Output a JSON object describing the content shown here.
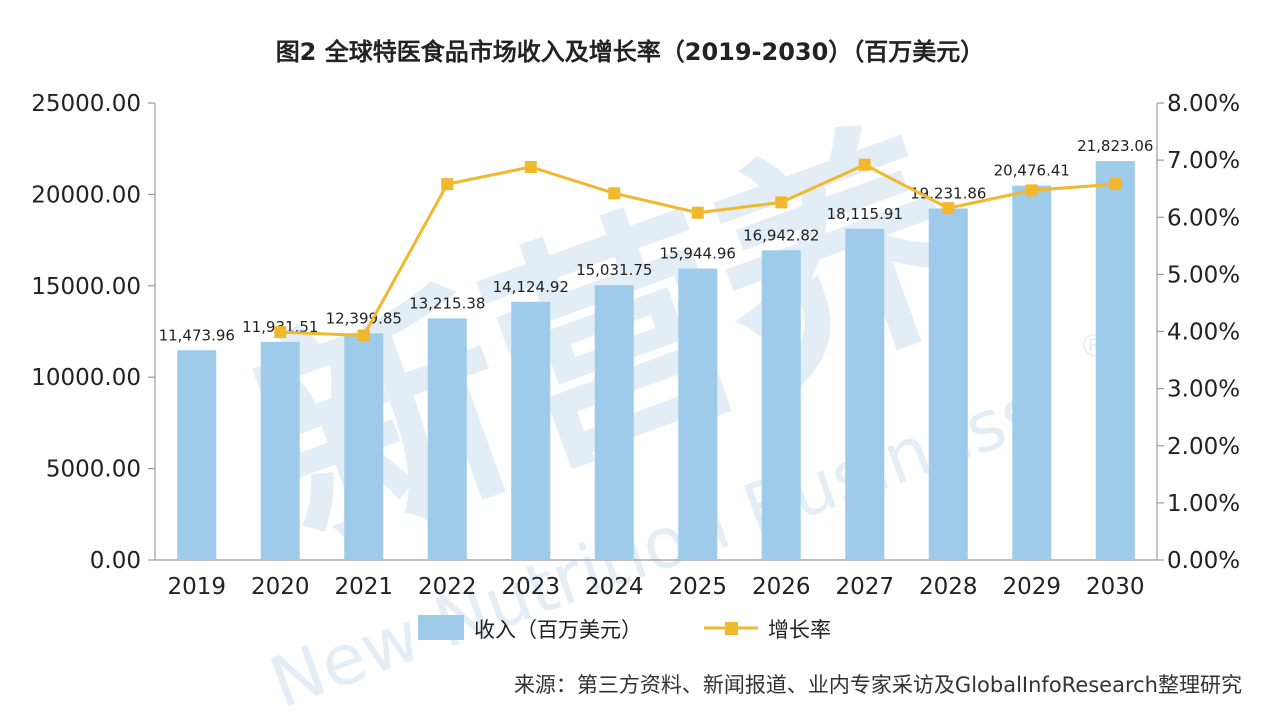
{
  "chart_data": {
    "type": "bar+line",
    "title": "图2 全球特医食品市场收入及增长率（2019-2030）（百万美元）",
    "categories": [
      "2019",
      "2020",
      "2021",
      "2022",
      "2023",
      "2024",
      "2025",
      "2026",
      "2027",
      "2028",
      "2029",
      "2030"
    ],
    "series": [
      {
        "name": "收入（百万美元）",
        "type": "bar",
        "axis": "left",
        "color": "#9ecbea",
        "values": [
          11473.96,
          11931.51,
          12399.85,
          13215.38,
          14124.92,
          15031.75,
          15944.96,
          16942.82,
          18115.91,
          19231.86,
          20476.41,
          21823.06
        ],
        "labels": [
          "11,473.96",
          "11,931.51",
          "12,399.85",
          "13,215.38",
          "14,124.92",
          "15,031.75",
          "15,944.96",
          "16,942.82",
          "18,115.91",
          "19,231.86",
          "20,476.41",
          "21,823.06"
        ]
      },
      {
        "name": "增长率",
        "type": "line",
        "axis": "right",
        "color": "#f2b82d",
        "values": [
          null,
          3.99,
          3.93,
          6.58,
          6.88,
          6.42,
          6.08,
          6.26,
          6.92,
          6.16,
          6.47,
          6.58
        ]
      }
    ],
    "ylim_left": [
      0,
      25000
    ],
    "ylim_right": [
      0,
      8
    ],
    "left_ticks": [
      "0.00",
      "5000.00",
      "10000.00",
      "15000.00",
      "20000.00",
      "25000.00"
    ],
    "right_ticks": [
      "0.00%",
      "1.00%",
      "2.00%",
      "3.00%",
      "4.00%",
      "5.00%",
      "6.00%",
      "7.00%",
      "8.00%"
    ],
    "legend_position": "bottom",
    "grid": false,
    "source": "来源：第三方资料、新闻报道、业内专家采访及GlobalInfoResearch整理研究"
  },
  "watermark": {
    "text": "新营养",
    "subtext": "New Nutrition Business",
    "mark": "®"
  }
}
